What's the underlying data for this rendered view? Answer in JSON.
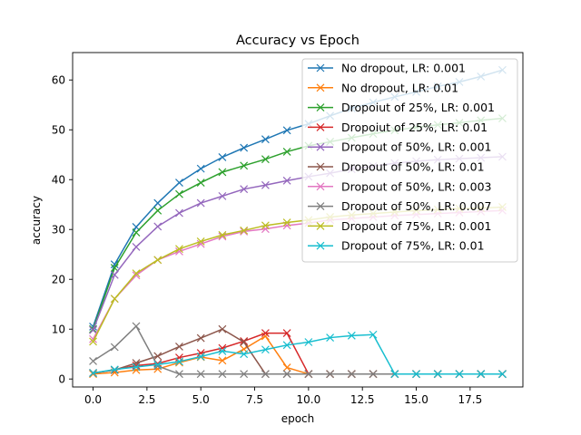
{
  "chart_data": {
    "type": "line",
    "title": "Accuracy vs Epoch",
    "xlabel": "epoch",
    "ylabel": "accuracy",
    "xlim": [
      -0.95,
      19.95
    ],
    "ylim": [
      -1.6,
      65.5
    ],
    "xticks": [
      0.0,
      2.5,
      5.0,
      7.5,
      10.0,
      12.5,
      15.0,
      17.5
    ],
    "xtick_labels": [
      "0.0",
      "2.5",
      "5.0",
      "7.5",
      "10.0",
      "12.5",
      "15.0",
      "17.5"
    ],
    "yticks": [
      0,
      10,
      20,
      30,
      40,
      50,
      60
    ],
    "ytick_labels": [
      "0",
      "10",
      "20",
      "30",
      "40",
      "50",
      "60"
    ],
    "grid": false,
    "legend_position": "top-right",
    "marker": "x",
    "x": [
      0,
      1,
      2,
      3,
      4,
      5,
      6,
      7,
      8,
      9,
      10,
      11,
      12,
      13,
      14,
      15,
      16,
      17,
      18,
      19
    ],
    "series": [
      {
        "name": "No dropout, LR: 0.001",
        "color": "#1f77b4",
        "values": [
          10.5,
          23.0,
          30.5,
          35.3,
          39.4,
          42.2,
          44.5,
          46.4,
          48.1,
          49.9,
          51.2,
          52.8,
          54.3,
          55.5,
          56.6,
          57.6,
          58.7,
          59.6,
          60.7,
          62.0
        ]
      },
      {
        "name": "No dropout, LR: 0.01",
        "color": "#ff7f0e",
        "values": [
          1.0,
          1.3,
          1.8,
          2.0,
          3.3,
          4.4,
          3.7,
          6.0,
          8.6,
          2.3,
          1.0,
          1.0,
          1.0,
          1.0,
          1.0,
          1.0,
          1.0,
          1.0,
          1.0,
          1.0
        ]
      },
      {
        "name": "Dropoiut of 25%, LR: 0.001",
        "color": "#2ca02c",
        "values": [
          10.0,
          22.3,
          29.4,
          33.8,
          37.1,
          39.4,
          41.5,
          42.8,
          44.1,
          45.6,
          46.8,
          47.6,
          48.4,
          49.2,
          49.9,
          50.5,
          51.0,
          51.4,
          51.9,
          52.3
        ]
      },
      {
        "name": "Dropoiut of 25%, LR: 0.01",
        "color": "#d62728",
        "values": [
          1.2,
          1.8,
          2.7,
          3.1,
          4.3,
          5.2,
          6.2,
          7.6,
          9.2,
          9.2,
          1.0,
          1.0,
          1.0,
          1.0,
          1.0,
          1.0,
          1.0,
          1.0,
          1.0,
          1.0
        ]
      },
      {
        "name": "Dropout of 50%, LR: 0.001",
        "color": "#9467bd",
        "values": [
          9.8,
          20.9,
          26.5,
          30.6,
          33.3,
          35.3,
          36.7,
          38.1,
          38.9,
          39.8,
          40.6,
          41.3,
          42.1,
          42.7,
          43.3,
          43.7,
          44.0,
          44.2,
          44.4,
          44.6
        ]
      },
      {
        "name": "Dropout of 50%, LR: 0.01",
        "color": "#8c564b",
        "values": [
          1.2,
          1.8,
          3.2,
          4.6,
          6.5,
          8.2,
          10.0,
          7.4,
          1.0,
          1.0,
          1.0,
          1.0,
          1.0,
          1.0,
          1.0,
          1.0,
          1.0,
          1.0,
          1.0,
          1.0
        ]
      },
      {
        "name": "Dropout of 50%, LR: 0.003",
        "color": "#e377c2",
        "values": [
          8.0,
          16.1,
          20.8,
          23.9,
          25.6,
          27.1,
          28.6,
          29.6,
          30.1,
          30.8,
          31.3,
          31.9,
          32.2,
          32.5,
          32.8,
          33.0,
          33.2,
          33.4,
          33.6,
          33.8
        ]
      },
      {
        "name": "Dropout of 50%, LR: 0.007",
        "color": "#7f7f7f",
        "values": [
          3.6,
          6.4,
          10.6,
          2.6,
          1.0,
          1.0,
          1.0,
          1.0,
          1.0,
          1.0,
          1.0,
          1.0,
          1.0,
          1.0,
          1.0,
          1.0,
          1.0,
          1.0,
          1.0,
          1.0
        ]
      },
      {
        "name": "Dropout of 75%, LR: 0.001",
        "color": "#bcbd22",
        "values": [
          7.5,
          16.1,
          21.2,
          23.9,
          26.1,
          27.6,
          28.9,
          29.8,
          30.8,
          31.4,
          31.9,
          32.5,
          32.9,
          33.2,
          33.5,
          33.8,
          34.0,
          34.2,
          34.3,
          34.5
        ]
      },
      {
        "name": "Dropout of 75%, LR: 0.01",
        "color": "#17becf",
        "values": [
          1.2,
          1.9,
          2.4,
          2.9,
          3.5,
          4.5,
          5.6,
          5.0,
          5.9,
          6.8,
          7.4,
          8.3,
          8.7,
          8.9,
          1.0,
          1.0,
          1.0,
          1.0,
          1.0,
          1.0
        ]
      }
    ]
  }
}
